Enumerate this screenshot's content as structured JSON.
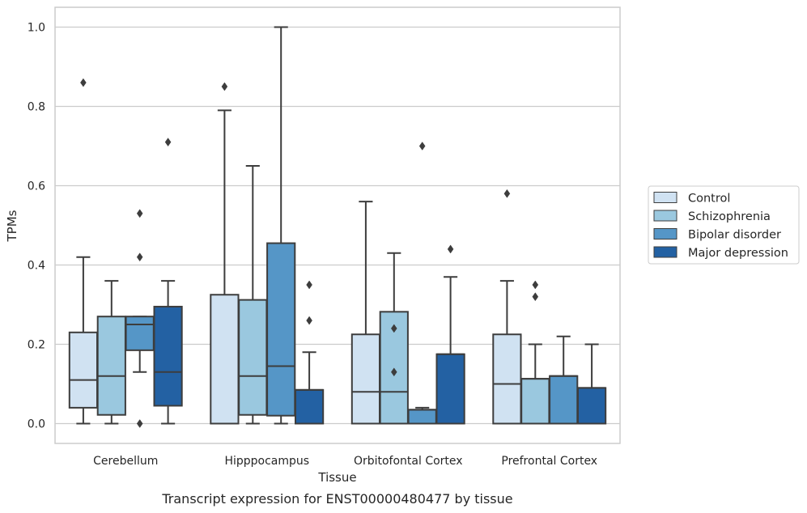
{
  "caption": "Transcript expression for ENST00000480477 by tissue",
  "chart_data": {
    "type": "box",
    "xlabel": "Tissue",
    "ylabel": "TPMs",
    "ylim": [
      -0.05,
      1.05
    ],
    "yticks": [
      "0.0",
      "0.2",
      "0.4",
      "0.6",
      "0.8",
      "1.0"
    ],
    "grid": "horizontal",
    "legend_position": "right",
    "categories": [
      "Cerebellum",
      "Hipppocampus",
      "Orbitofontal Cortex",
      "Prefrontal Cortex"
    ],
    "series": [
      {
        "name": "Control",
        "color": "#d0e2f2",
        "boxes": [
          {
            "whisker_low": 0.0,
            "q1": 0.04,
            "median": 0.11,
            "q3": 0.23,
            "whisker_high": 0.42,
            "outliers": [
              0.86
            ]
          },
          {
            "whisker_low": 0.0,
            "q1": 0.0,
            "median": 0.0,
            "q3": 0.325,
            "whisker_high": 0.79,
            "outliers": [
              0.85
            ]
          },
          {
            "whisker_low": 0.0,
            "q1": 0.0,
            "median": 0.08,
            "q3": 0.225,
            "whisker_high": 0.56,
            "outliers": []
          },
          {
            "whisker_low": 0.0,
            "q1": 0.0,
            "median": 0.1,
            "q3": 0.225,
            "whisker_high": 0.36,
            "outliers": [
              0.58
            ]
          }
        ]
      },
      {
        "name": "Schizophrenia",
        "color": "#9ac8df",
        "boxes": [
          {
            "whisker_low": 0.0,
            "q1": 0.022,
            "median": 0.12,
            "q3": 0.27,
            "whisker_high": 0.36,
            "outliers": []
          },
          {
            "whisker_low": 0.0,
            "q1": 0.022,
            "median": 0.12,
            "q3": 0.312,
            "whisker_high": 0.65,
            "outliers": []
          },
          {
            "whisker_low": 0.0,
            "q1": 0.0,
            "median": 0.08,
            "q3": 0.282,
            "whisker_high": 0.43,
            "outliers": [
              0.13,
              0.24
            ]
          },
          {
            "whisker_low": 0.0,
            "q1": 0.0,
            "median": 0.113,
            "q3": 0.113,
            "whisker_high": 0.2,
            "outliers": [
              0.32,
              0.35
            ]
          }
        ]
      },
      {
        "name": "Bipolar disorder",
        "color": "#5596c7",
        "boxes": [
          {
            "whisker_low": 0.13,
            "q1": 0.185,
            "median": 0.25,
            "q3": 0.27,
            "whisker_high": 0.27,
            "outliers": [
              0.0,
              0.42,
              0.53
            ]
          },
          {
            "whisker_low": 0.0,
            "q1": 0.02,
            "median": 0.145,
            "q3": 0.455,
            "whisker_high": 1.0,
            "outliers": []
          },
          {
            "whisker_low": 0.0,
            "q1": 0.0,
            "median": 0.035,
            "q3": 0.035,
            "whisker_high": 0.04,
            "outliers": [
              0.7
            ]
          },
          {
            "whisker_low": 0.0,
            "q1": 0.0,
            "median": 0.12,
            "q3": 0.12,
            "whisker_high": 0.22,
            "outliers": []
          }
        ]
      },
      {
        "name": "Major depression",
        "color": "#2361a3",
        "boxes": [
          {
            "whisker_low": 0.0,
            "q1": 0.045,
            "median": 0.13,
            "q3": 0.295,
            "whisker_high": 0.36,
            "outliers": [
              0.71
            ]
          },
          {
            "whisker_low": 0.0,
            "q1": 0.0,
            "median": 0.085,
            "q3": 0.085,
            "whisker_high": 0.18,
            "outliers": [
              0.26,
              0.35
            ]
          },
          {
            "whisker_low": 0.0,
            "q1": 0.0,
            "median": 0.175,
            "q3": 0.175,
            "whisker_high": 0.37,
            "outliers": [
              0.44
            ]
          },
          {
            "whisker_low": 0.0,
            "q1": 0.0,
            "median": 0.09,
            "q3": 0.09,
            "whisker_high": 0.2,
            "outliers": []
          }
        ]
      }
    ]
  }
}
